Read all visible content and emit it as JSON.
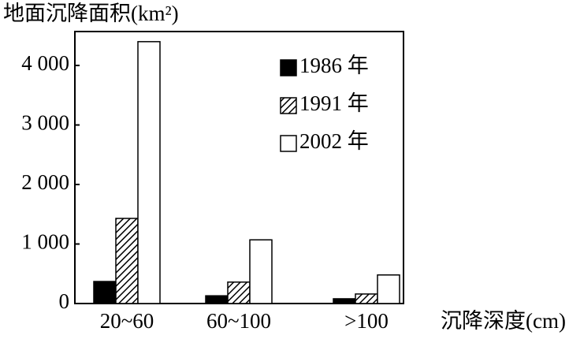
{
  "chart_data": {
    "type": "bar",
    "title": "地面沉降面积(km²)",
    "x_label": "沉降深度(cm)",
    "categories": [
      "20~60",
      "60~100",
      ">100"
    ],
    "series": [
      {
        "name": "1986 年",
        "color": "#000000",
        "values": [
          370,
          130,
          80
        ]
      },
      {
        "name": "1991 年",
        "color": "#000000",
        "pattern": "hatch",
        "values": [
          1430,
          360,
          160
        ]
      },
      {
        "name": "2002 年",
        "color": "#ffffff",
        "values": [
          4400,
          1070,
          480
        ]
      }
    ],
    "ylim": [
      0,
      4570
    ],
    "yticks": [
      0,
      {
        "value": 1000,
        "label": "1 000"
      },
      {
        "value": 2000,
        "label": "2 000"
      },
      {
        "value": 3000,
        "label": "3 000"
      },
      {
        "value": 4000,
        "label": "4 000"
      }
    ],
    "legend": "upper right"
  }
}
